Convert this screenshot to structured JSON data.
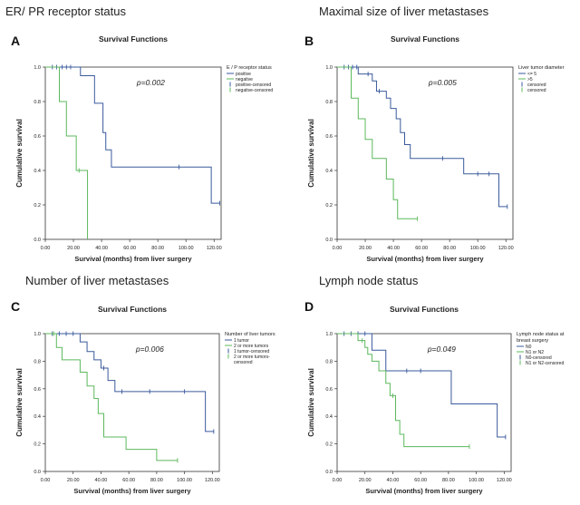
{
  "colors": {
    "blue": "#3a5a9c",
    "green": "#5cb85c",
    "axis": "#333333"
  },
  "chart_data": [
    {
      "type": "line",
      "heading": "ER/ PR receptor status",
      "letter": "A",
      "title": "Survival Functions",
      "xlabel": "Survival (months) from liver surgery",
      "ylabel": "Cumulative survival",
      "p_value": "p=0.002",
      "xlim": [
        0,
        125
      ],
      "ylim": [
        0,
        1.0
      ],
      "x_ticks": [
        "0.00",
        "20.00",
        "40.00",
        "60.00",
        "80.00",
        "100.00",
        "120.00"
      ],
      "y_ticks": [
        "0.0",
        "0.2",
        "0.4",
        "0.6",
        "0.8",
        "1.0"
      ],
      "legend_title": "E / P receptor status",
      "legend": [
        {
          "label": "positive",
          "kind": "line",
          "color": "blue"
        },
        {
          "label": "negative",
          "kind": "line",
          "color": "green"
        },
        {
          "label": "positive-censored",
          "kind": "censor",
          "color": "blue"
        },
        {
          "label": "negative-censored",
          "kind": "censor",
          "color": "green"
        }
      ],
      "series": [
        {
          "name": "positive",
          "color": "blue",
          "steps": [
            [
              0,
              1.0
            ],
            [
              25,
              0.95
            ],
            [
              35,
              0.79
            ],
            [
              41,
              0.62
            ],
            [
              43,
              0.52
            ],
            [
              47,
              0.42
            ],
            [
              118,
              0.21
            ],
            [
              124,
              0.21
            ]
          ],
          "censored": [
            [
              5,
              1.0
            ],
            [
              8,
              1.0
            ],
            [
              12,
              1.0
            ],
            [
              15,
              1.0
            ],
            [
              18,
              1.0
            ],
            [
              95,
              0.42
            ],
            [
              124,
              0.21
            ]
          ]
        },
        {
          "name": "negative",
          "color": "green",
          "steps": [
            [
              0,
              1.0
            ],
            [
              10,
              0.8
            ],
            [
              15,
              0.6
            ],
            [
              22,
              0.4
            ],
            [
              30,
              0.0
            ]
          ],
          "censored": [
            [
              24,
              0.4
            ]
          ]
        }
      ]
    },
    {
      "type": "line",
      "heading": "Maximal size of liver metastases",
      "letter": "B",
      "title": "Survival Functions",
      "xlabel": "Survival (months) from liver surgery",
      "ylabel": "Cumulative survival",
      "p_value": "p=0.005",
      "xlim": [
        0,
        125
      ],
      "ylim": [
        0,
        1.0
      ],
      "x_ticks": [
        "0.00",
        "20.00",
        "40.00",
        "60.00",
        "80.00",
        "100.00",
        "120.00"
      ],
      "y_ticks": [
        "0.0",
        "0.2",
        "0.4",
        "0.6",
        "0.8",
        "1.0"
      ],
      "legend_title": "Liver tumor diameter",
      "legend": [
        {
          "label": "<= 5",
          "kind": "line",
          "color": "blue"
        },
        {
          "label": ">5",
          "kind": "line",
          "color": "green"
        },
        {
          "label": "censored",
          "kind": "censor",
          "color": "blue"
        },
        {
          "label": "censored",
          "kind": "censor",
          "color": "green"
        }
      ],
      "series": [
        {
          "name": "<= 5",
          "color": "blue",
          "steps": [
            [
              0,
              1.0
            ],
            [
              15,
              0.96
            ],
            [
              25,
              0.92
            ],
            [
              28,
              0.86
            ],
            [
              35,
              0.82
            ],
            [
              38,
              0.76
            ],
            [
              42,
              0.7
            ],
            [
              45,
              0.62
            ],
            [
              48,
              0.55
            ],
            [
              52,
              0.47
            ],
            [
              90,
              0.38
            ],
            [
              115,
              0.19
            ],
            [
              121,
              0.19
            ]
          ],
          "censored": [
            [
              5,
              1.0
            ],
            [
              8,
              1.0
            ],
            [
              11,
              1.0
            ],
            [
              14,
              1.0
            ],
            [
              22,
              0.96
            ],
            [
              30,
              0.86
            ],
            [
              75,
              0.47
            ],
            [
              100,
              0.38
            ],
            [
              108,
              0.38
            ],
            [
              121,
              0.19
            ]
          ]
        },
        {
          "name": ">5",
          "color": "green",
          "steps": [
            [
              0,
              1.0
            ],
            [
              10,
              0.82
            ],
            [
              15,
              0.7
            ],
            [
              20,
              0.58
            ],
            [
              25,
              0.47
            ],
            [
              35,
              0.35
            ],
            [
              40,
              0.23
            ],
            [
              43,
              0.12
            ],
            [
              57,
              0.12
            ]
          ],
          "censored": [
            [
              57,
              0.12
            ]
          ]
        }
      ]
    },
    {
      "type": "line",
      "heading": "Number of liver metastases",
      "letter": "C",
      "title": "Survival Functions",
      "xlabel": "Survival (months) from liver surgery",
      "ylabel": "Cumulative survival",
      "p_value": "p=0.006",
      "xlim": [
        0,
        125
      ],
      "ylim": [
        0,
        1.0
      ],
      "x_ticks": [
        "0.00",
        "20.00",
        "40.00",
        "60.00",
        "80.00",
        "100.00",
        "120.00"
      ],
      "y_ticks": [
        "0.0",
        "0.2",
        "0.4",
        "0.6",
        "0.8",
        "1.0"
      ],
      "legend_title": "Number of liver tumors",
      "legend": [
        {
          "label": "1 tumor",
          "kind": "line",
          "color": "blue"
        },
        {
          "label": "2 or more tumors",
          "kind": "line",
          "color": "green"
        },
        {
          "label": "1 tumor-censored",
          "kind": "censor",
          "color": "blue"
        },
        {
          "label": "2 or more tumors-censored",
          "kind": "censor",
          "color": "green"
        }
      ],
      "series": [
        {
          "name": "1 tumor",
          "color": "blue",
          "steps": [
            [
              0,
              1.0
            ],
            [
              25,
              0.94
            ],
            [
              30,
              0.87
            ],
            [
              35,
              0.81
            ],
            [
              40,
              0.75
            ],
            [
              45,
              0.66
            ],
            [
              50,
              0.58
            ],
            [
              115,
              0.29
            ],
            [
              121,
              0.29
            ]
          ],
          "censored": [
            [
              5,
              1.0
            ],
            [
              10,
              1.0
            ],
            [
              15,
              1.0
            ],
            [
              20,
              1.0
            ],
            [
              42,
              0.75
            ],
            [
              55,
              0.58
            ],
            [
              75,
              0.58
            ],
            [
              100,
              0.58
            ],
            [
              121,
              0.29
            ]
          ]
        },
        {
          "name": "2 or more tumors",
          "color": "green",
          "steps": [
            [
              0,
              1.0
            ],
            [
              8,
              0.9
            ],
            [
              12,
              0.81
            ],
            [
              25,
              0.72
            ],
            [
              30,
              0.62
            ],
            [
              35,
              0.53
            ],
            [
              38,
              0.42
            ],
            [
              42,
              0.25
            ],
            [
              58,
              0.16
            ],
            [
              80,
              0.08
            ],
            [
              95,
              0.08
            ]
          ],
          "censored": [
            [
              6,
              1.0
            ],
            [
              95,
              0.08
            ]
          ]
        }
      ]
    },
    {
      "type": "line",
      "heading": "Lymph node status",
      "letter": "D",
      "title": "Survival Functions",
      "xlabel": "Survival (months) from liver surgery",
      "ylabel": "Cumulative survival",
      "p_value": "p=0.049",
      "xlim": [
        0,
        125
      ],
      "ylim": [
        0,
        1.0
      ],
      "x_ticks": [
        "0.00",
        "20.00",
        "40.00",
        "60.00",
        "80.00",
        "100.00",
        "120.00"
      ],
      "y_ticks": [
        "0.0",
        "0.2",
        "0.4",
        "0.6",
        "0.8",
        "1.0"
      ],
      "legend_title": "Lymph node status at breast surgery",
      "legend": [
        {
          "label": "N0",
          "kind": "line",
          "color": "blue"
        },
        {
          "label": "N1 or N2",
          "kind": "line",
          "color": "green"
        },
        {
          "label": "N0-censored",
          "kind": "censor",
          "color": "blue"
        },
        {
          "label": "N1 or N2-censored",
          "kind": "censor",
          "color": "green"
        }
      ],
      "series": [
        {
          "name": "N0",
          "color": "blue",
          "steps": [
            [
              0,
              1.0
            ],
            [
              25,
              0.88
            ],
            [
              35,
              0.73
            ],
            [
              82,
              0.49
            ],
            [
              115,
              0.25
            ],
            [
              121,
              0.25
            ]
          ],
          "censored": [
            [
              5,
              1.0
            ],
            [
              10,
              1.0
            ],
            [
              15,
              1.0
            ],
            [
              20,
              1.0
            ],
            [
              50,
              0.73
            ],
            [
              60,
              0.73
            ],
            [
              121,
              0.25
            ]
          ]
        },
        {
          "name": "N1 or N2",
          "color": "green",
          "steps": [
            [
              0,
              1.0
            ],
            [
              15,
              0.95
            ],
            [
              20,
              0.9
            ],
            [
              22,
              0.85
            ],
            [
              25,
              0.8
            ],
            [
              30,
              0.73
            ],
            [
              35,
              0.64
            ],
            [
              38,
              0.55
            ],
            [
              42,
              0.37
            ],
            [
              45,
              0.27
            ],
            [
              48,
              0.18
            ],
            [
              95,
              0.18
            ]
          ],
          "censored": [
            [
              18,
              0.95
            ],
            [
              40,
              0.55
            ],
            [
              95,
              0.18
            ]
          ]
        }
      ]
    }
  ]
}
